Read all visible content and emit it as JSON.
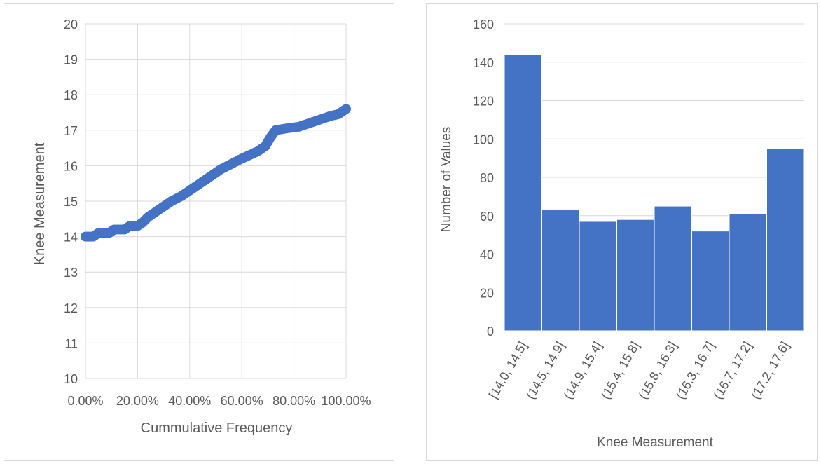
{
  "chart_data": [
    {
      "type": "scatter",
      "title": "",
      "xlabel": "Cummulative Frequency",
      "ylabel": "Knee Measurement",
      "xlim": [
        0,
        1
      ],
      "ylim": [
        10,
        20
      ],
      "x_ticks": [
        "0.00%",
        "20.00%",
        "40.00%",
        "60.00%",
        "80.00%",
        "100.00%"
      ],
      "y_ticks": [
        "10",
        "11",
        "12",
        "13",
        "14",
        "15",
        "16",
        "17",
        "18",
        "19",
        "20"
      ],
      "grid": true,
      "marker_color": "#4472c4",
      "points": [
        {
          "x": 0.0,
          "y": 14.0
        },
        {
          "x": 0.03,
          "y": 14.0
        },
        {
          "x": 0.05,
          "y": 14.1
        },
        {
          "x": 0.09,
          "y": 14.1
        },
        {
          "x": 0.11,
          "y": 14.2
        },
        {
          "x": 0.15,
          "y": 14.2
        },
        {
          "x": 0.17,
          "y": 14.3
        },
        {
          "x": 0.2,
          "y": 14.3
        },
        {
          "x": 0.22,
          "y": 14.4
        },
        {
          "x": 0.24,
          "y": 14.55
        },
        {
          "x": 0.27,
          "y": 14.7
        },
        {
          "x": 0.3,
          "y": 14.85
        },
        {
          "x": 0.33,
          "y": 15.0
        },
        {
          "x": 0.37,
          "y": 15.15
        },
        {
          "x": 0.4,
          "y": 15.3
        },
        {
          "x": 0.43,
          "y": 15.45
        },
        {
          "x": 0.46,
          "y": 15.6
        },
        {
          "x": 0.49,
          "y": 15.75
        },
        {
          "x": 0.52,
          "y": 15.9
        },
        {
          "x": 0.56,
          "y": 16.05
        },
        {
          "x": 0.6,
          "y": 16.2
        },
        {
          "x": 0.63,
          "y": 16.3
        },
        {
          "x": 0.66,
          "y": 16.4
        },
        {
          "x": 0.69,
          "y": 16.55
        },
        {
          "x": 0.71,
          "y": 16.8
        },
        {
          "x": 0.73,
          "y": 17.0
        },
        {
          "x": 0.77,
          "y": 17.05
        },
        {
          "x": 0.82,
          "y": 17.1
        },
        {
          "x": 0.86,
          "y": 17.2
        },
        {
          "x": 0.9,
          "y": 17.3
        },
        {
          "x": 0.94,
          "y": 17.4
        },
        {
          "x": 0.97,
          "y": 17.45
        },
        {
          "x": 1.0,
          "y": 17.6
        }
      ]
    },
    {
      "type": "bar",
      "title": "",
      "xlabel": "Knee Measurement",
      "ylabel": "Number of Values",
      "ylim": [
        0,
        160
      ],
      "y_ticks": [
        "0",
        "20",
        "40",
        "60",
        "80",
        "100",
        "120",
        "140",
        "160"
      ],
      "grid": true,
      "bar_color": "#4472c4",
      "categories": [
        "[14.0, 14.5]",
        "(14.5, 14.9]",
        "(14.9, 15.4]",
        "(15.4, 15.8]",
        "(15.8, 16.3]",
        "(16.3, 16.7]",
        "(16.7, 17.2]",
        "(17.2, 17.6]"
      ],
      "values": [
        144,
        63,
        57,
        58,
        65,
        52,
        61,
        95
      ]
    }
  ]
}
